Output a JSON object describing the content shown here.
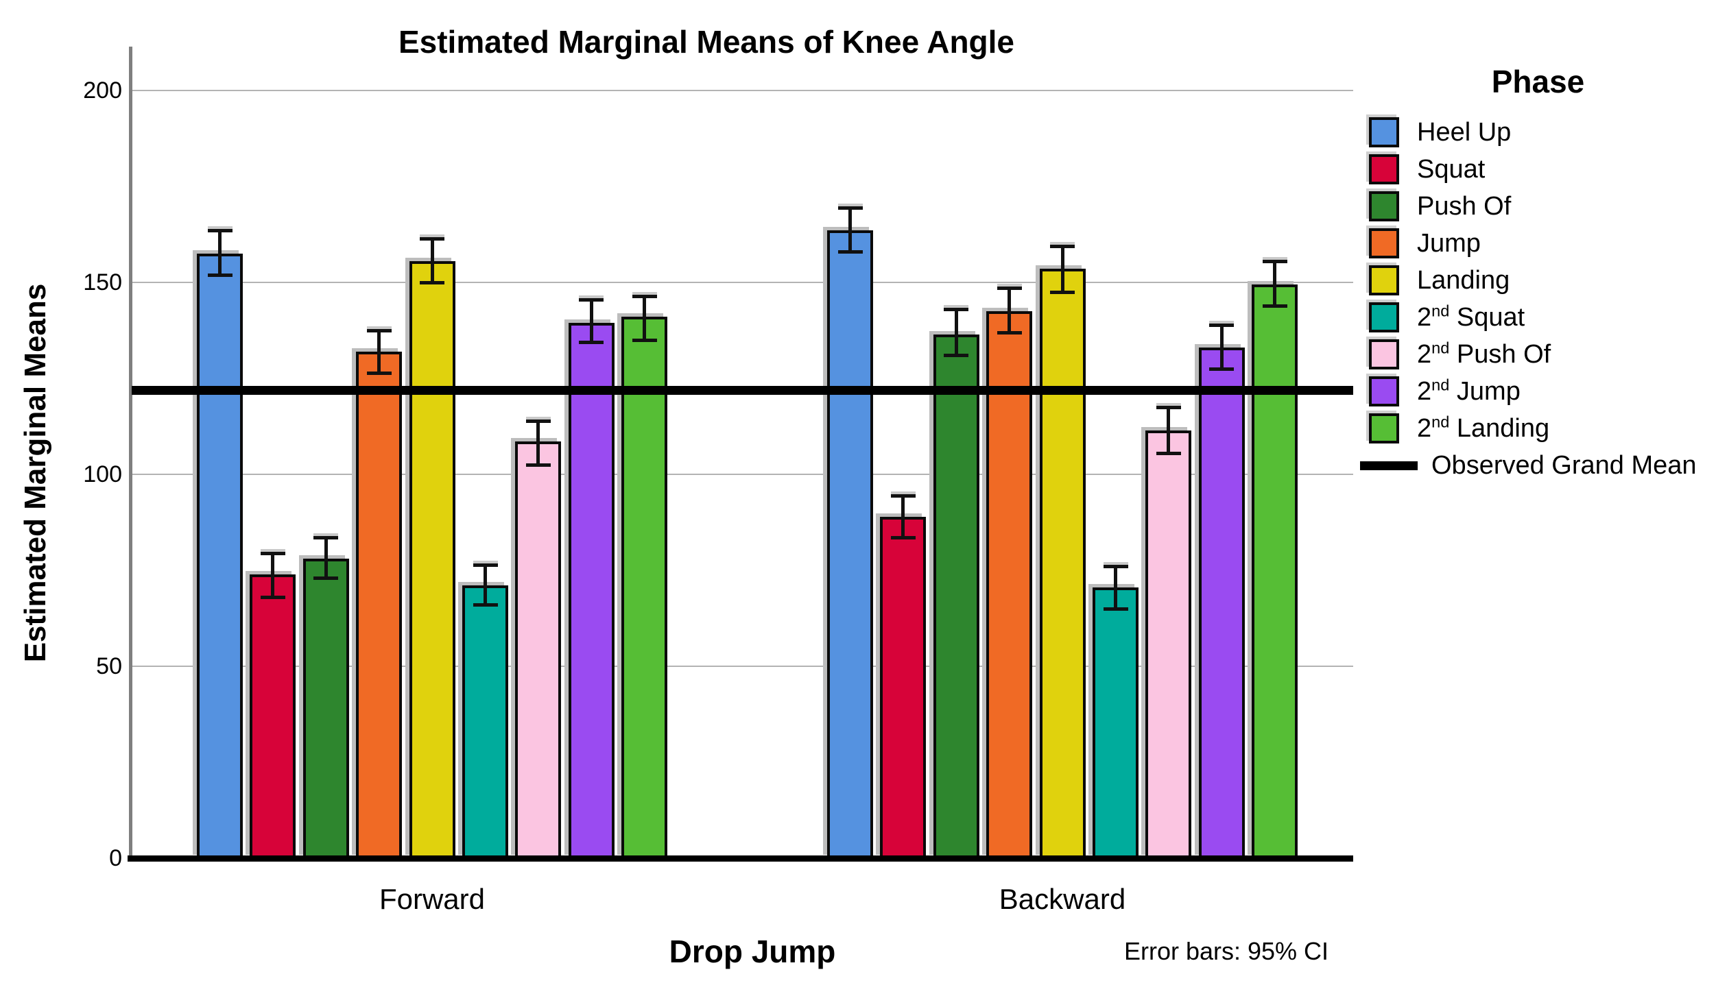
{
  "chart_data": {
    "type": "bar",
    "title": "Estimated Marginal Means of Knee Angle",
    "xlabel": "Drop Jump",
    "ylabel": "Estimated Marginal Means",
    "categories": [
      "Forward",
      "Backward"
    ],
    "ylim": [
      0,
      211
    ],
    "yticks": [
      0,
      50,
      100,
      150,
      200
    ],
    "grid": true,
    "legend_title": "Phase",
    "legend_position": "right",
    "error_note": "Error bars: 95% CI",
    "grand_mean": {
      "label": "Observed Grand Mean",
      "value": 122,
      "color": "#000000"
    },
    "series": [
      {
        "name": "Heel Up",
        "color": "#5592E0",
        "values": [
          157.5,
          163.5
        ],
        "ci_low": [
          152,
          158
        ],
        "ci_high": [
          163.5,
          169.5
        ]
      },
      {
        "name": "Squat",
        "color": "#D70339",
        "values": [
          74,
          89
        ],
        "ci_low": [
          68,
          83.5
        ],
        "ci_high": [
          79.5,
          94.5
        ]
      },
      {
        "name": "Push Of",
        "color": "#2E862E",
        "values": [
          78,
          136.5
        ],
        "ci_low": [
          73,
          131
        ],
        "ci_high": [
          83.5,
          143
        ]
      },
      {
        "name": "Jump",
        "color": "#F06A25",
        "values": [
          132,
          142.5
        ],
        "ci_low": [
          126.5,
          137
        ],
        "ci_high": [
          137.5,
          148.5
        ]
      },
      {
        "name": "Landing",
        "color": "#E0D20D",
        "values": [
          155.5,
          153.5
        ],
        "ci_low": [
          150,
          147.5
        ],
        "ci_high": [
          161.5,
          159.5
        ]
      },
      {
        "name": "2nd Squat",
        "label_parts": {
          "base": "2",
          "sup": "nd",
          "rest": " Squat"
        },
        "color": "#00AC9C",
        "values": [
          71,
          70.5
        ],
        "ci_low": [
          66,
          65
        ],
        "ci_high": [
          76.5,
          76
        ]
      },
      {
        "name": "2nd Push Of",
        "label_parts": {
          "base": "2",
          "sup": "nd",
          "rest": " Push Of"
        },
        "color": "#FBC5E1",
        "values": [
          108.5,
          111.5
        ],
        "ci_low": [
          102.5,
          105.5
        ],
        "ci_high": [
          114,
          117.5
        ]
      },
      {
        "name": "2nd Jump",
        "label_parts": {
          "base": "2",
          "sup": "nd",
          "rest": " Jump"
        },
        "color": "#9A4BF1",
        "values": [
          139.5,
          133
        ],
        "ci_low": [
          134.5,
          127.5
        ],
        "ci_high": [
          145.5,
          139
        ]
      },
      {
        "name": "2nd Landing",
        "label_parts": {
          "base": "2",
          "sup": "nd",
          "rest": " Landing"
        },
        "color": "#56BE35",
        "values": [
          141,
          149.5
        ],
        "ci_low": [
          135,
          144
        ],
        "ci_high": [
          146.5,
          155.5
        ]
      }
    ]
  }
}
